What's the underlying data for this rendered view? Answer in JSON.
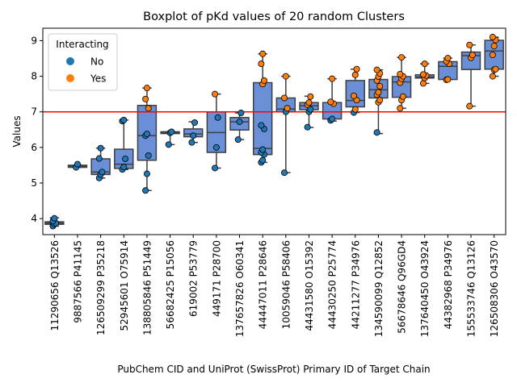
{
  "chart_data": {
    "type": "box",
    "title": "Boxplot of pKd values of 20 random Clusters",
    "xlabel": "PubChem CID and UniProt (SwissProt) Primary ID of Target Chain",
    "ylabel": "Values",
    "ylim": [
      3.55,
      9.35
    ],
    "yticks": [
      4,
      5,
      6,
      7,
      8,
      9
    ],
    "threshold": 7,
    "threshold_color": "#ff0000",
    "box_color": "#6a8fd6",
    "legend": {
      "title": "Interacting",
      "position": "upper left",
      "entries": [
        {
          "label": "No",
          "color": "#1f77b4"
        },
        {
          "label": "Yes",
          "color": "#ff7f0e"
        }
      ]
    },
    "categories": [
      "11290656 Q13526",
      "9887566 P41145",
      "126509299 P35218",
      "52945601 O75914",
      "138805846 P51449",
      "56682425 P15056",
      "619002 P53779",
      "449171 P28700",
      "137657826 O60341",
      "44447011 P28646",
      "10059046 P58406",
      "44431580 O15392",
      "44430250 P25774",
      "44211277 P34976",
      "134590099 Q12852",
      "56678646 Q96GD4",
      "137640450 O43924",
      "44382968 P34976",
      "155533746 Q13126",
      "126508306 O43570"
    ],
    "boxes": [
      {
        "q1": 3.84,
        "median": 3.87,
        "q3": 3.91,
        "whislo": 3.79,
        "whishi": 4.02
      },
      {
        "q1": 5.44,
        "median": 5.47,
        "q3": 5.5,
        "whislo": 5.44,
        "whishi": 5.5
      },
      {
        "q1": 5.24,
        "median": 5.31,
        "q3": 5.68,
        "whislo": 5.14,
        "whishi": 5.98
      },
      {
        "q1": 5.41,
        "median": 5.53,
        "q3": 5.95,
        "whislo": 5.38,
        "whishi": 6.77
      },
      {
        "q1": 5.64,
        "median": 6.33,
        "q3": 7.18,
        "whislo": 4.79,
        "whishi": 7.67
      },
      {
        "q1": 6.39,
        "median": 6.42,
        "q3": 6.44,
        "whislo": 6.08,
        "whishi": 6.44
      },
      {
        "q1": 6.3,
        "median": 6.38,
        "q3": 6.52,
        "whislo": 6.14,
        "whishi": 6.72
      },
      {
        "q1": 5.86,
        "median": 6.42,
        "q3": 7.0,
        "whislo": 5.42,
        "whishi": 7.5
      },
      {
        "q1": 6.49,
        "median": 6.72,
        "q3": 6.84,
        "whislo": 6.22,
        "whishi": 6.97
      },
      {
        "q1": 5.8,
        "median": 5.97,
        "q3": 7.82,
        "whislo": 5.58,
        "whishi": 8.63
      },
      {
        "q1": 7.0,
        "median": 7.08,
        "q3": 7.39,
        "whislo": 5.29,
        "whishi": 8.0
      },
      {
        "q1": 7.06,
        "median": 7.17,
        "q3": 7.26,
        "whislo": 6.56,
        "whishi": 7.44
      },
      {
        "q1": 6.8,
        "median": 7.0,
        "q3": 7.26,
        "whislo": 6.74,
        "whishi": 7.93
      },
      {
        "q1": 7.14,
        "median": 7.32,
        "q3": 7.88,
        "whislo": 6.98,
        "whishi": 8.2
      },
      {
        "q1": 7.39,
        "median": 7.62,
        "q3": 7.91,
        "whislo": 6.39,
        "whishi": 8.18
      },
      {
        "q1": 7.41,
        "median": 7.84,
        "q3": 7.99,
        "whislo": 7.1,
        "whishi": 8.53
      },
      {
        "q1": 7.95,
        "median": 7.98,
        "q3": 8.04,
        "whislo": 7.8,
        "whishi": 8.35
      },
      {
        "q1": 7.91,
        "median": 8.28,
        "q3": 8.41,
        "whislo": 7.91,
        "whishi": 8.51
      },
      {
        "q1": 8.19,
        "median": 8.58,
        "q3": 8.68,
        "whislo": 7.16,
        "whishi": 8.88
      },
      {
        "q1": 8.2,
        "median": 8.71,
        "q3": 9.01,
        "whislo": 8.0,
        "whishi": 9.1
      }
    ],
    "points": [
      [
        {
          "v": 3.79,
          "i": 0
        },
        {
          "v": 3.84,
          "i": 0
        },
        {
          "v": 3.87,
          "i": 0
        },
        {
          "v": 3.93,
          "i": 0
        },
        {
          "v": 4.01,
          "i": 0
        }
      ],
      [
        {
          "v": 5.44,
          "i": 0
        },
        {
          "v": 5.53,
          "i": 0
        }
      ],
      [
        {
          "v": 5.14,
          "i": 0
        },
        {
          "v": 5.24,
          "i": 0
        },
        {
          "v": 5.31,
          "i": 0
        },
        {
          "v": 5.69,
          "i": 0
        },
        {
          "v": 5.98,
          "i": 0
        }
      ],
      [
        {
          "v": 5.38,
          "i": 0
        },
        {
          "v": 5.45,
          "i": 0
        },
        {
          "v": 5.68,
          "i": 0
        },
        {
          "v": 6.74,
          "i": 0
        },
        {
          "v": 6.77,
          "i": 0
        }
      ],
      [
        {
          "v": 4.79,
          "i": 0
        },
        {
          "v": 5.26,
          "i": 0
        },
        {
          "v": 5.77,
          "i": 0
        },
        {
          "v": 6.33,
          "i": 0
        },
        {
          "v": 6.38,
          "i": 0
        },
        {
          "v": 7.1,
          "i": 1
        },
        {
          "v": 7.36,
          "i": 1
        },
        {
          "v": 7.67,
          "i": 1
        }
      ],
      [
        {
          "v": 6.08,
          "i": 0
        },
        {
          "v": 6.41,
          "i": 0
        },
        {
          "v": 6.44,
          "i": 0
        }
      ],
      [
        {
          "v": 6.14,
          "i": 0
        },
        {
          "v": 6.33,
          "i": 0
        },
        {
          "v": 6.7,
          "i": 0
        }
      ],
      [
        {
          "v": 5.42,
          "i": 0
        },
        {
          "v": 6.0,
          "i": 0
        },
        {
          "v": 6.84,
          "i": 0
        },
        {
          "v": 7.5,
          "i": 1
        }
      ],
      [
        {
          "v": 6.22,
          "i": 0
        },
        {
          "v": 6.72,
          "i": 0
        },
        {
          "v": 6.97,
          "i": 0
        }
      ],
      [
        {
          "v": 5.58,
          "i": 0
        },
        {
          "v": 5.64,
          "i": 0
        },
        {
          "v": 5.8,
          "i": 0
        },
        {
          "v": 5.86,
          "i": 0
        },
        {
          "v": 5.94,
          "i": 0
        },
        {
          "v": 6.52,
          "i": 0
        },
        {
          "v": 6.62,
          "i": 0
        },
        {
          "v": 7.78,
          "i": 1
        },
        {
          "v": 7.88,
          "i": 1
        },
        {
          "v": 8.35,
          "i": 1
        },
        {
          "v": 8.63,
          "i": 1
        }
      ],
      [
        {
          "v": 5.29,
          "i": 0
        },
        {
          "v": 7.0,
          "i": 0
        },
        {
          "v": 7.1,
          "i": 1
        },
        {
          "v": 7.39,
          "i": 1
        },
        {
          "v": 8.0,
          "i": 1
        }
      ],
      [
        {
          "v": 6.57,
          "i": 0
        },
        {
          "v": 7.0,
          "i": 0
        },
        {
          "v": 7.07,
          "i": 0
        },
        {
          "v": 7.2,
          "i": 1
        },
        {
          "v": 7.26,
          "i": 1
        },
        {
          "v": 7.43,
          "i": 1
        }
      ],
      [
        {
          "v": 6.76,
          "i": 0
        },
        {
          "v": 6.8,
          "i": 0
        },
        {
          "v": 7.23,
          "i": 1
        },
        {
          "v": 7.28,
          "i": 1
        },
        {
          "v": 7.93,
          "i": 1
        }
      ],
      [
        {
          "v": 6.98,
          "i": 0
        },
        {
          "v": 7.07,
          "i": 1
        },
        {
          "v": 7.33,
          "i": 1
        },
        {
          "v": 7.45,
          "i": 1
        },
        {
          "v": 8.04,
          "i": 1
        },
        {
          "v": 8.2,
          "i": 1
        }
      ],
      [
        {
          "v": 6.42,
          "i": 0
        },
        {
          "v": 7.27,
          "i": 1
        },
        {
          "v": 7.33,
          "i": 1
        },
        {
          "v": 7.48,
          "i": 1
        },
        {
          "v": 7.55,
          "i": 1
        },
        {
          "v": 7.72,
          "i": 1
        },
        {
          "v": 7.88,
          "i": 1
        },
        {
          "v": 7.99,
          "i": 1
        },
        {
          "v": 8.08,
          "i": 1
        },
        {
          "v": 8.18,
          "i": 1
        }
      ],
      [
        {
          "v": 7.1,
          "i": 1
        },
        {
          "v": 7.33,
          "i": 1
        },
        {
          "v": 7.43,
          "i": 1
        },
        {
          "v": 7.82,
          "i": 1
        },
        {
          "v": 7.93,
          "i": 1
        },
        {
          "v": 8.0,
          "i": 1
        },
        {
          "v": 8.06,
          "i": 1
        },
        {
          "v": 8.53,
          "i": 1
        }
      ],
      [
        {
          "v": 7.8,
          "i": 1
        },
        {
          "v": 7.95,
          "i": 1
        },
        {
          "v": 8.02,
          "i": 1
        },
        {
          "v": 8.05,
          "i": 1
        },
        {
          "v": 8.35,
          "i": 1
        }
      ],
      [
        {
          "v": 7.9,
          "i": 1
        },
        {
          "v": 7.91,
          "i": 1
        },
        {
          "v": 8.35,
          "i": 1
        },
        {
          "v": 8.42,
          "i": 1
        },
        {
          "v": 8.51,
          "i": 1
        }
      ],
      [
        {
          "v": 7.16,
          "i": 1
        },
        {
          "v": 8.52,
          "i": 1
        },
        {
          "v": 8.6,
          "i": 1
        },
        {
          "v": 8.88,
          "i": 1
        }
      ],
      [
        {
          "v": 8.0,
          "i": 1
        },
        {
          "v": 8.18,
          "i": 1
        },
        {
          "v": 8.2,
          "i": 1
        },
        {
          "v": 8.6,
          "i": 1
        },
        {
          "v": 8.85,
          "i": 1
        },
        {
          "v": 9.02,
          "i": 1
        },
        {
          "v": 9.1,
          "i": 1
        }
      ]
    ]
  }
}
